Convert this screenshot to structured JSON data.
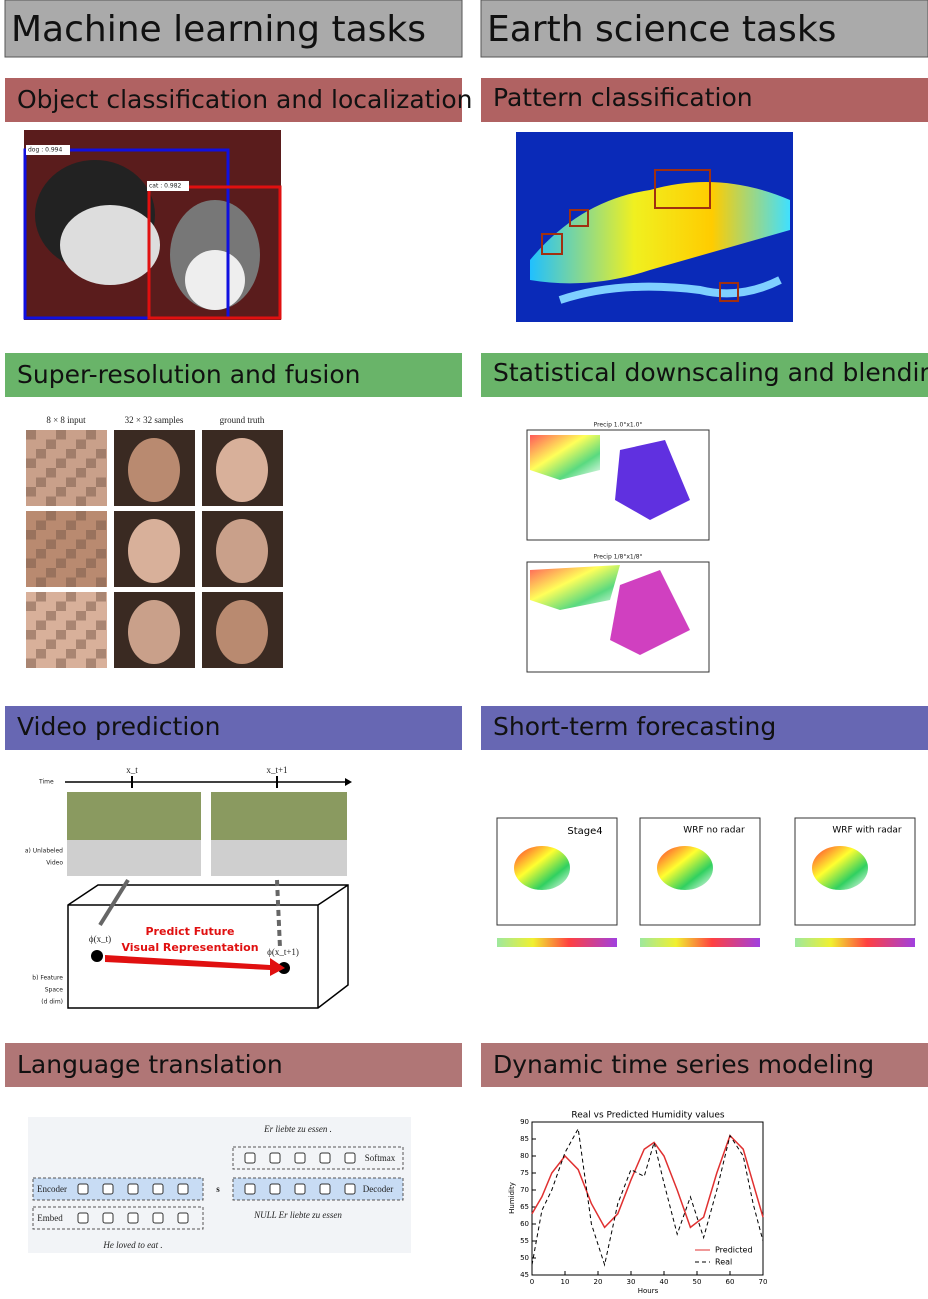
{
  "left": {
    "header": "Machine learning  tasks",
    "sections": [
      {
        "title": "Object classification and localization",
        "labels": [
          "dog : 0.994",
          "cat : 0.982"
        ]
      },
      {
        "title": "Super-resolution and fusion",
        "labels": [
          "8 × 8 input",
          "32 × 32 samples",
          "ground truth"
        ]
      },
      {
        "title": "Video prediction",
        "labels": [
          "Time",
          "x_t",
          "x_t+1",
          "a) Unlabeled",
          "Video",
          "ϕ(x_t)",
          "ϕ(x_t+1)",
          "Predict Future",
          "Visual Representation",
          "b) Feature",
          "Space",
          "(d dim)"
        ]
      },
      {
        "title": "Language translation",
        "labels": [
          "Er  liebte  zu  essen  .",
          "Softmax",
          "Encoder",
          "Decoder",
          "Embed",
          "s",
          "NULL  Er  liebte  zu  essen",
          "He  loved  to  eat  ."
        ]
      }
    ]
  },
  "right": {
    "header": "Earth science tasks",
    "sections": [
      {
        "title": "Pattern classification",
        "labels": []
      },
      {
        "title": "Statistical downscaling and blending",
        "labels": [
          "Precip 1.0°x1.0°",
          "Precip 1/8°x1/8°"
        ]
      },
      {
        "title": "Short-term forecasting",
        "labels": [
          "Stage4",
          "WRF no radar",
          "WRF with radar"
        ]
      },
      {
        "title": "Dynamic time series modeling",
        "labels": []
      }
    ]
  },
  "chart_data": {
    "type": "line",
    "title": "Real vs Predicted Humidity values",
    "x_label": "Hours",
    "y_label": "Humidity",
    "x": [
      0,
      3,
      6,
      10,
      14,
      18,
      22,
      26,
      30,
      34,
      37,
      40,
      44,
      48,
      52,
      56,
      60,
      64,
      67,
      70
    ],
    "series": [
      {
        "name": "Predicted",
        "color": "#e03030",
        "values": [
          63,
          68,
          75,
          80,
          76,
          66,
          59,
          63,
          73,
          82,
          84,
          80,
          70,
          59,
          62,
          75,
          86,
          82,
          72,
          62
        ]
      },
      {
        "name": "Real",
        "color": "#000000",
        "values": [
          48,
          64,
          70,
          81,
          88,
          60,
          48,
          66,
          76,
          74,
          84,
          72,
          57,
          68,
          56,
          70,
          86,
          80,
          66,
          55
        ]
      }
    ],
    "xlim": [
      0,
      70
    ],
    "ylim": [
      45,
      90
    ],
    "xticks": [
      0,
      10,
      20,
      30,
      40,
      50,
      60,
      70
    ],
    "yticks": [
      45,
      50,
      55,
      60,
      65,
      70,
      75,
      80,
      85,
      90
    ]
  }
}
